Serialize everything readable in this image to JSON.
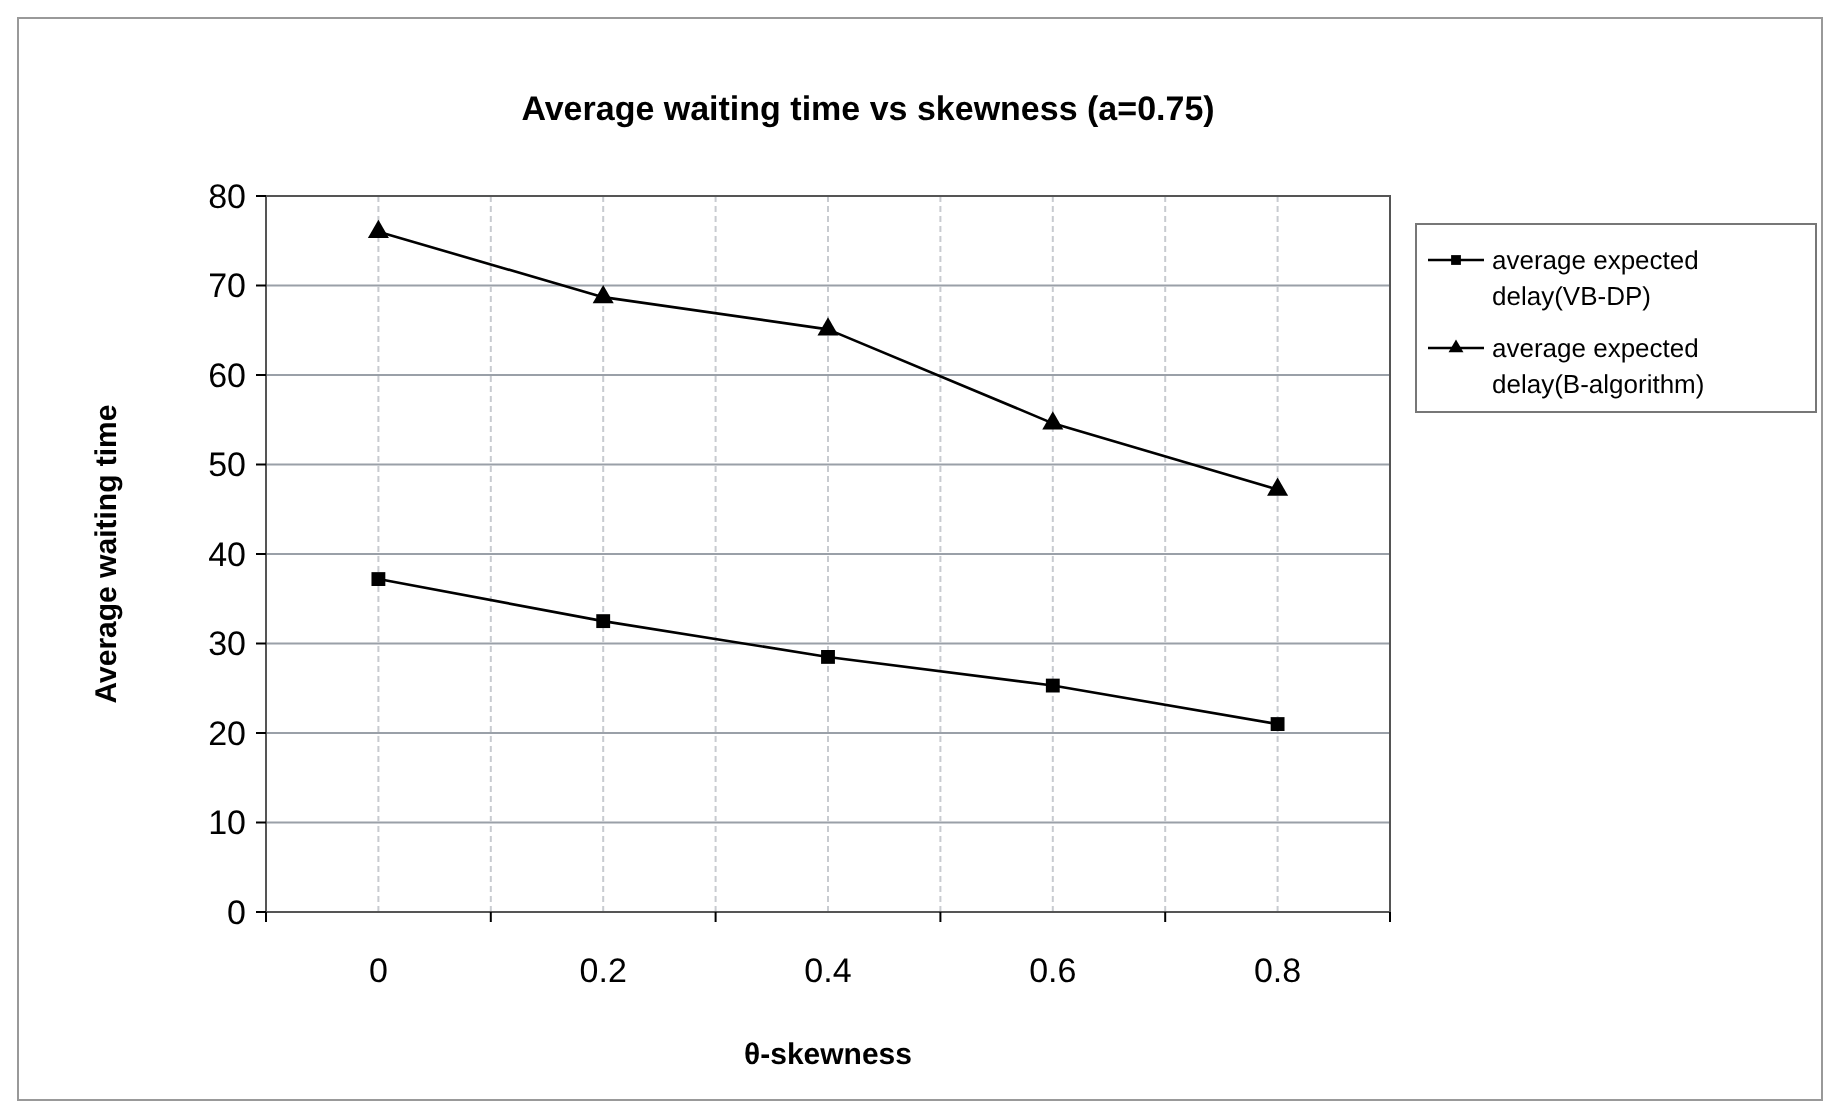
{
  "chart_data": {
    "type": "line",
    "title": "Average waiting time vs skewness (a=0.75)",
    "xlabel": "θ-skewness",
    "ylabel": "Average waiting time",
    "categories": [
      "0",
      "0.2",
      "0.4",
      "0.6",
      "0.8"
    ],
    "series": [
      {
        "name": "average expected delay(VB-DP)",
        "color": "#000000",
        "marker": "square",
        "values": [
          37.2,
          32.5,
          28.5,
          25.3,
          21.0
        ]
      },
      {
        "name": "average expected delay(B-algorithm)",
        "color": "#000000",
        "marker": "triangle",
        "values": [
          76.0,
          68.7,
          65.1,
          54.6,
          47.2
        ]
      }
    ],
    "ylim": [
      0,
      80
    ],
    "yticks": [
      0,
      10,
      20,
      30,
      40,
      50,
      60,
      70,
      80
    ],
    "grid": true,
    "legend": "right",
    "line_style": "solid"
  }
}
